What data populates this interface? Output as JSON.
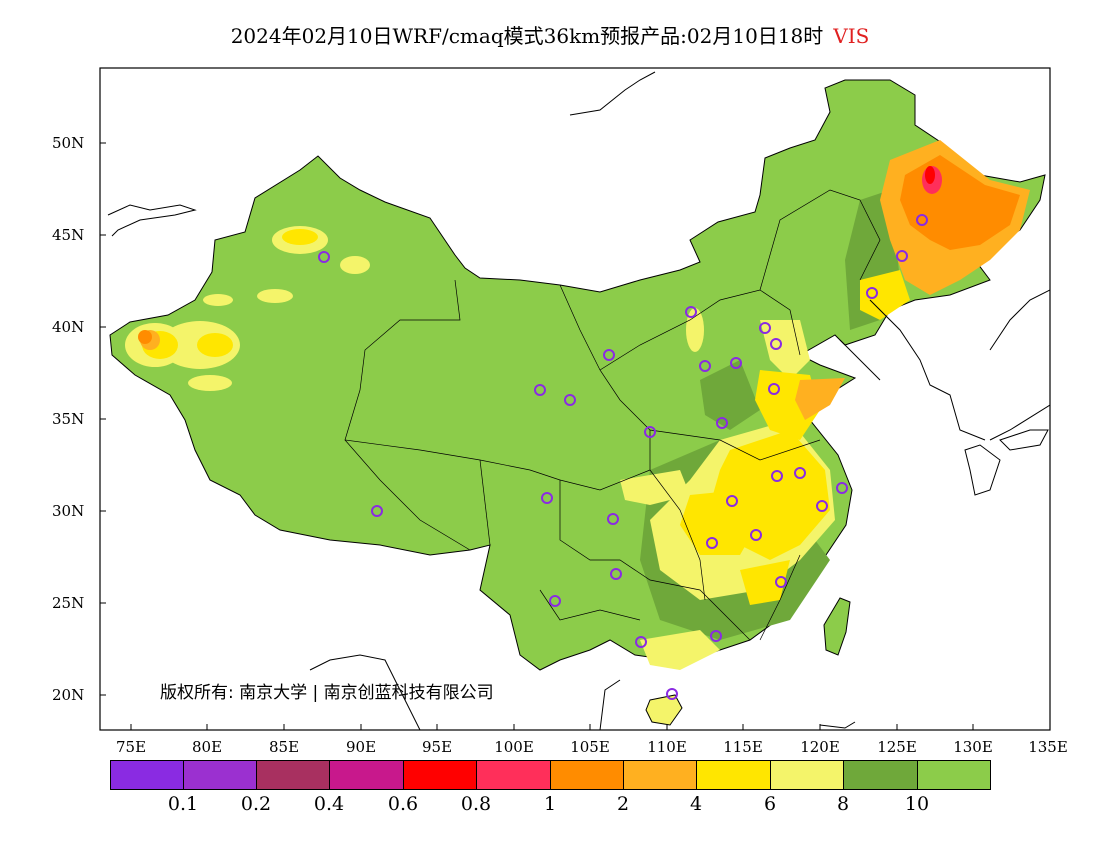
{
  "title": {
    "text": "2024年02月10日WRF/cmaq模式36km预报产品:02月10日18时",
    "variable": "VIS"
  },
  "map": {
    "lat_labels": [
      "50N",
      "45N",
      "40N",
      "35N",
      "30N",
      "25N",
      "20N"
    ],
    "lon_labels": [
      "75E",
      "80E",
      "85E",
      "90E",
      "95E",
      "100E",
      "105E",
      "110E",
      "115E",
      "120E",
      "125E",
      "130E",
      "135E"
    ],
    "copyright": "版权所有: 南京大学 | 南京创蓝科技有限公司"
  },
  "legend": {
    "colors": [
      "#8a2be2",
      "#9b30d0",
      "#a83060",
      "#c8188c",
      "#ff0000",
      "#ff2f5a",
      "#ff8c00",
      "#ffb020",
      "#ffe600",
      "#f4f46a",
      "#6fa83a",
      "#8ccc4a"
    ],
    "values": [
      "0.1",
      "0.2",
      "0.4",
      "0.6",
      "0.8",
      "1",
      "2",
      "4",
      "6",
      "8",
      "10"
    ]
  }
}
